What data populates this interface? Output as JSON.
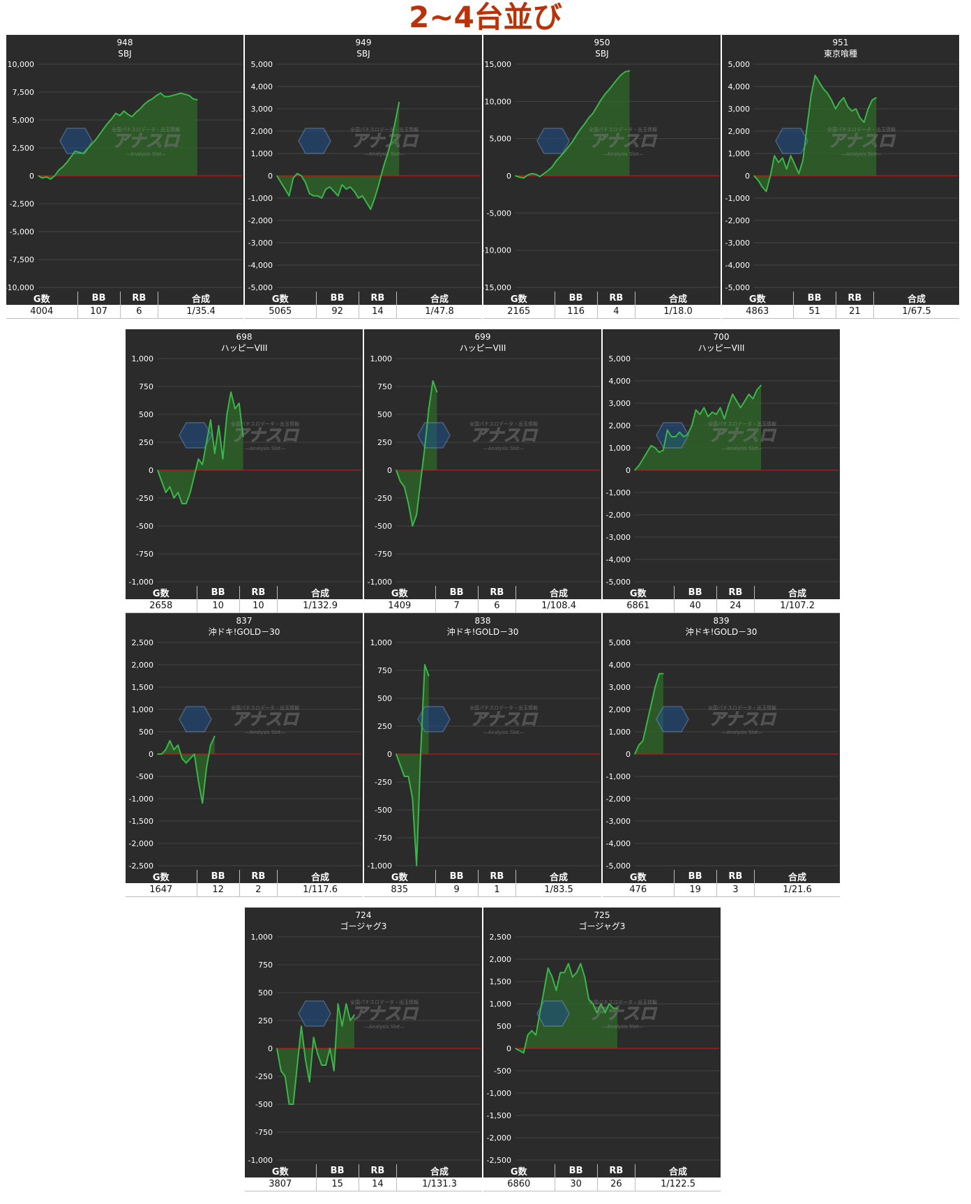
{
  "page_title": "2~4台並び",
  "watermark": {
    "text": "アナスロ",
    "sub": "—Analysis Slot—",
    "top": "全国パチスロデータ・出玉情報"
  },
  "colors": {
    "title": "#b8330a",
    "panel_bg": "#2b2b2b",
    "line": "#3cb64a",
    "fill": "#2f6a2a",
    "zero_line": "#c41616",
    "grid": "#444444"
  },
  "table_headers": [
    "G数",
    "BB",
    "RB",
    "合成"
  ],
  "chart_data": [
    {
      "type": "area",
      "machine_no": "948",
      "model": "SBJ",
      "ylim": [
        -10000,
        10000
      ],
      "ticks": [
        "10,000",
        "7,500",
        "5,000",
        "2,500",
        "0",
        "-2,500",
        "-5,000",
        "-7,500",
        "-10,000"
      ],
      "values": [
        0,
        -200,
        -100,
        -300,
        0,
        500,
        800,
        1200,
        1700,
        2200,
        2100,
        2000,
        2400,
        2800,
        3200,
        3700,
        4200,
        4700,
        5100,
        5600,
        5400,
        5800,
        5500,
        5300,
        5700,
        6000,
        6400,
        6700,
        6900,
        7200,
        7400,
        7100,
        7100,
        7200,
        7300,
        7400,
        7300,
        7200,
        6900,
        6800
      ],
      "stats": {
        "games": "4004",
        "bb": "107",
        "rb": "6",
        "combined": "1/35.4"
      }
    },
    {
      "type": "area",
      "machine_no": "949",
      "model": "SBJ",
      "ylim": [
        -5000,
        5000
      ],
      "ticks": [
        "5,000",
        "4,000",
        "3,000",
        "2,000",
        "1,000",
        "0",
        "-1,000",
        "-2,000",
        "-3,000",
        "-4,000",
        "-5,000"
      ],
      "values": [
        0,
        -300,
        -600,
        -900,
        -100,
        100,
        0,
        -300,
        -800,
        -900,
        -900,
        -1000,
        -600,
        -500,
        -700,
        -900,
        -400,
        -600,
        -500,
        -700,
        -1000,
        -900,
        -1200,
        -1500,
        -1000,
        -400,
        300,
        900,
        1500,
        2400,
        3300
      ],
      "stats": {
        "games": "5065",
        "bb": "92",
        "rb": "14",
        "combined": "1/47.8"
      }
    },
    {
      "type": "area",
      "machine_no": "950",
      "model": "SBJ",
      "ylim": [
        -15000,
        15000
      ],
      "ticks": [
        "15,000",
        "10,000",
        "5,000",
        "0",
        "-5,000",
        "-10,000",
        "-15,000"
      ],
      "values": [
        0,
        -200,
        -300,
        100,
        300,
        200,
        -100,
        300,
        700,
        1200,
        2000,
        2600,
        3200,
        3900,
        4600,
        5500,
        6300,
        7000,
        7800,
        8400,
        9300,
        10200,
        11000,
        11600,
        12300,
        13000,
        13600,
        14000,
        14100
      ],
      "stats": {
        "games": "2165",
        "bb": "116",
        "rb": "4",
        "combined": "1/18.0"
      }
    },
    {
      "type": "area",
      "machine_no": "951",
      "model": "東京喰種",
      "ylim": [
        -5000,
        5000
      ],
      "ticks": [
        "5,000",
        "4,000",
        "3,000",
        "2,000",
        "1,000",
        "0",
        "-1,000",
        "-2,000",
        "-3,000",
        "-4,000",
        "-5,000"
      ],
      "values": [
        0,
        -200,
        -500,
        -700,
        0,
        900,
        600,
        800,
        300,
        900,
        500,
        100,
        700,
        2200,
        3600,
        4500,
        4200,
        3900,
        3700,
        3400,
        3000,
        3300,
        3500,
        3100,
        2900,
        3000,
        2600,
        2400,
        3000,
        3400,
        3500
      ],
      "stats": {
        "games": "4863",
        "bb": "51",
        "rb": "21",
        "combined": "1/67.5"
      }
    },
    {
      "type": "area",
      "machine_no": "698",
      "model": "ハッピーVIII",
      "ylim": [
        -1000,
        1000
      ],
      "ticks": [
        "1,000",
        "750",
        "500",
        "250",
        "0",
        "-250",
        "-500",
        "-750",
        "-1,000"
      ],
      "values": [
        0,
        -100,
        -200,
        -150,
        -250,
        -200,
        -300,
        -300,
        -200,
        -50,
        100,
        50,
        250,
        450,
        150,
        400,
        100,
        500,
        700,
        550,
        600,
        300
      ],
      "stats": {
        "games": "2658",
        "bb": "10",
        "rb": "10",
        "combined": "1/132.9"
      }
    },
    {
      "type": "area",
      "machine_no": "699",
      "model": "ハッピーVIII",
      "ylim": [
        -1000,
        1000
      ],
      "ticks": [
        "1,000",
        "750",
        "500",
        "250",
        "0",
        "-250",
        "-500",
        "-750",
        "-1,000"
      ],
      "values": [
        0,
        -100,
        -150,
        -300,
        -500,
        -400,
        -100,
        200,
        550,
        800,
        700
      ],
      "stats": {
        "games": "1409",
        "bb": "7",
        "rb": "6",
        "combined": "1/108.4"
      }
    },
    {
      "type": "area",
      "machine_no": "700",
      "model": "ハッピーVIII",
      "ylim": [
        -5000,
        5000
      ],
      "ticks": [
        "5,000",
        "4,000",
        "3,000",
        "2,000",
        "1,000",
        "0",
        "-1,000",
        "-2,000",
        "-3,000",
        "-4,000",
        "-5,000"
      ],
      "values": [
        0,
        200,
        500,
        800,
        1100,
        1000,
        800,
        900,
        1800,
        1500,
        1500,
        1700,
        1500,
        1600,
        2000,
        2700,
        2500,
        2800,
        2400,
        2600,
        2500,
        2800,
        2300,
        2900,
        3400,
        3100,
        2800,
        3100,
        3400,
        3200,
        3600,
        3800
      ],
      "stats": {
        "games": "6861",
        "bb": "40",
        "rb": "24",
        "combined": "1/107.2"
      }
    },
    {
      "type": "area",
      "machine_no": "837",
      "model": "沖ドキ!GOLD－30",
      "ylim": [
        -2500,
        2500
      ],
      "ticks": [
        "2,500",
        "2,000",
        "1,500",
        "1,000",
        "500",
        "0",
        "-500",
        "-1,000",
        "-1,500",
        "-2,000",
        "-2,500"
      ],
      "values": [
        0,
        0,
        100,
        300,
        100,
        200,
        -100,
        -200,
        -100,
        0,
        -600,
        -1100,
        -300,
        200,
        400
      ],
      "stats": {
        "games": "1647",
        "bb": "12",
        "rb": "2",
        "combined": "1/117.6"
      }
    },
    {
      "type": "area",
      "machine_no": "838",
      "model": "沖ドキ!GOLD－30",
      "ylim": [
        -1000,
        1000
      ],
      "ticks": [
        "1,000",
        "750",
        "500",
        "250",
        "0",
        "-250",
        "-500",
        "-750",
        "-1,000"
      ],
      "values": [
        0,
        -100,
        -200,
        -200,
        -400,
        -1000,
        0,
        800,
        700
      ],
      "stats": {
        "games": "835",
        "bb": "9",
        "rb": "1",
        "combined": "1/83.5"
      }
    },
    {
      "type": "area",
      "machine_no": "839",
      "model": "沖ドキ!GOLD－30",
      "ylim": [
        -5000,
        5000
      ],
      "ticks": [
        "5,000",
        "4,000",
        "3,000",
        "2,000",
        "1,000",
        "0",
        "-1,000",
        "-2,000",
        "-3,000",
        "-4,000",
        "-5,000"
      ],
      "values": [
        0,
        400,
        600,
        1400,
        2200,
        3000,
        3600,
        3600
      ],
      "stats": {
        "games": "476",
        "bb": "19",
        "rb": "3",
        "combined": "1/21.6"
      }
    },
    {
      "type": "area",
      "machine_no": "724",
      "model": "ゴージャグ3",
      "ylim": [
        -1000,
        1000
      ],
      "ticks": [
        "1,000",
        "750",
        "500",
        "250",
        "0",
        "-250",
        "-500",
        "-750",
        "-1,000"
      ],
      "values": [
        0,
        -200,
        -250,
        -500,
        -500,
        -150,
        200,
        -100,
        -300,
        100,
        -50,
        -150,
        -150,
        0,
        -200,
        400,
        200,
        400,
        250,
        300
      ],
      "stats": {
        "games": "3807",
        "bb": "15",
        "rb": "14",
        "combined": "1/131.3"
      }
    },
    {
      "type": "area",
      "machine_no": "725",
      "model": "ゴージャグ3",
      "ylim": [
        -2500,
        2500
      ],
      "ticks": [
        "2,500",
        "2,000",
        "1,500",
        "1,000",
        "500",
        "0",
        "-500",
        "-1,000",
        "-1,500",
        "-2,000",
        "-2,500"
      ],
      "values": [
        0,
        -50,
        -100,
        300,
        400,
        300,
        800,
        1300,
        1800,
        1600,
        1300,
        1700,
        1700,
        1900,
        1600,
        1700,
        1900,
        1600,
        1100,
        1000,
        800,
        1000,
        800,
        1000,
        900,
        900
      ],
      "stats": {
        "games": "6860",
        "bb": "30",
        "rb": "26",
        "combined": "1/122.5"
      }
    }
  ]
}
